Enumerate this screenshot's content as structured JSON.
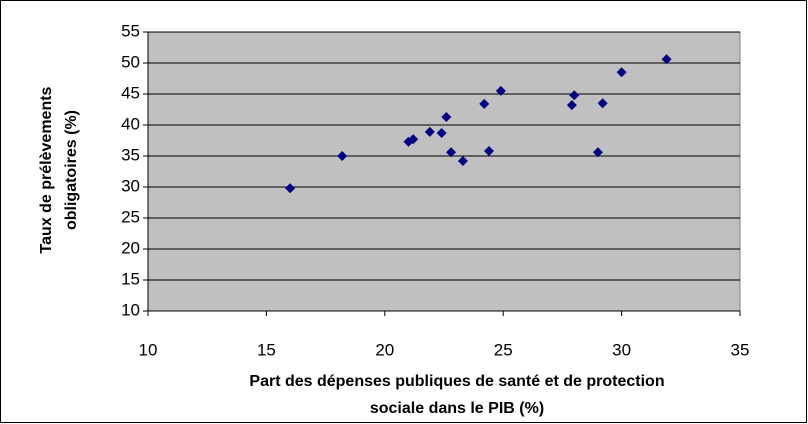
{
  "chart_data": {
    "type": "scatter",
    "x_label": [
      "Part des dépenses publiques de santé et de protection",
      "sociale dans le PIB (%)"
    ],
    "y_label": [
      "Taux de prélèvements",
      "obligatoires (%)"
    ],
    "series": [
      {
        "color": "#000080",
        "x": [
          16.0,
          18.2,
          21.0,
          21.2,
          21.9,
          22.4,
          22.6,
          22.8,
          23.3,
          24.2,
          24.4,
          24.9,
          27.9,
          28.0,
          29.0,
          29.2,
          30.0,
          31.9
        ],
        "values": [
          29.8,
          35.0,
          37.3,
          37.7,
          38.9,
          38.7,
          41.3,
          35.6,
          34.2,
          43.4,
          35.8,
          45.5,
          43.2,
          44.8,
          35.6,
          43.5,
          48.5,
          50.6
        ]
      }
    ],
    "xlim": [
      10,
      35
    ],
    "xticks": [
      10,
      15,
      20,
      25,
      30,
      35
    ],
    "ylim": [
      10,
      55
    ],
    "yticks": [
      10,
      15,
      20,
      25,
      30,
      35,
      40,
      45,
      50,
      55
    ],
    "grid": true,
    "plot_background": "#c0c0c0"
  }
}
